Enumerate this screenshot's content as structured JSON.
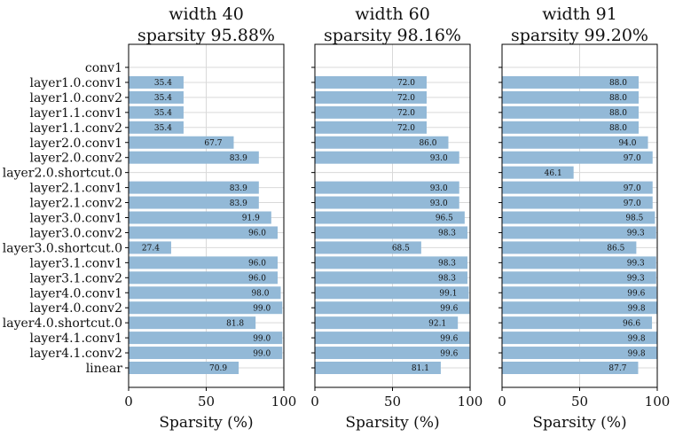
{
  "chart_data": {
    "type": "bar",
    "orientation": "horizontal",
    "bar_color": "#93b9d7",
    "grid": true,
    "categories": [
      "conv1",
      "layer1.0.conv1",
      "layer1.0.conv2",
      "layer1.1.conv1",
      "layer1.1.conv2",
      "layer2.0.conv1",
      "layer2.0.conv2",
      "layer2.0.shortcut.0",
      "layer2.1.conv1",
      "layer2.1.conv2",
      "layer3.0.conv1",
      "layer3.0.conv2",
      "layer3.0.shortcut.0",
      "layer3.1.conv1",
      "layer3.1.conv2",
      "layer4.0.conv1",
      "layer4.0.conv2",
      "layer4.0.shortcut.0",
      "layer4.1.conv1",
      "layer4.1.conv2",
      "linear"
    ],
    "xlim": [
      0,
      100
    ],
    "xticks": [
      0,
      50,
      100
    ],
    "xlabel": "Sparsity (%)",
    "panels": [
      {
        "title_line1": "width 40",
        "title_line2": "sparsity 95.88%",
        "values": [
          null,
          35.4,
          35.4,
          35.4,
          35.4,
          67.7,
          83.9,
          null,
          83.9,
          83.9,
          91.9,
          96.0,
          27.4,
          96.0,
          96.0,
          98.0,
          99.0,
          81.8,
          99.0,
          99.0,
          70.9
        ],
        "labels": [
          "",
          "35.4",
          "35.4",
          "35.4",
          "35.4",
          "67.7",
          "83.9",
          "",
          "83.9",
          "83.9",
          "91.9",
          "96.0",
          "27.4",
          "96.0",
          "96.0",
          "98.0",
          "99.0",
          "81.8",
          "99.0",
          "99.0",
          "70.9"
        ]
      },
      {
        "title_line1": "width 60",
        "title_line2": "sparsity 98.16%",
        "values": [
          null,
          72.0,
          72.0,
          72.0,
          72.0,
          86.0,
          93.0,
          null,
          93.0,
          93.0,
          96.5,
          98.3,
          68.5,
          98.3,
          98.3,
          99.1,
          99.6,
          92.1,
          99.6,
          99.6,
          81.1
        ],
        "labels": [
          "",
          "72.0",
          "72.0",
          "72.0",
          "72.0",
          "86.0",
          "93.0",
          "",
          "93.0",
          "93.0",
          "96.5",
          "98.3",
          "68.5",
          "98.3",
          "98.3",
          "99.1",
          "99.6",
          "92.1",
          "99.6",
          "99.6",
          "81.1"
        ]
      },
      {
        "title_line1": "width 91",
        "title_line2": "sparsity 99.20%",
        "values": [
          null,
          88.0,
          88.0,
          88.0,
          88.0,
          94.0,
          97.0,
          46.1,
          97.0,
          97.0,
          98.5,
          99.3,
          86.5,
          99.3,
          99.3,
          99.6,
          99.8,
          96.6,
          99.8,
          99.8,
          87.7
        ],
        "labels": [
          "",
          "88.0",
          "88.0",
          "88.0",
          "88.0",
          "94.0",
          "97.0",
          "46.1",
          "97.0",
          "97.0",
          "98.5",
          "99.3",
          "86.5",
          "99.3",
          "99.3",
          "99.6",
          "99.8",
          "96.6",
          "99.8",
          "99.8",
          "87.7"
        ]
      }
    ]
  }
}
